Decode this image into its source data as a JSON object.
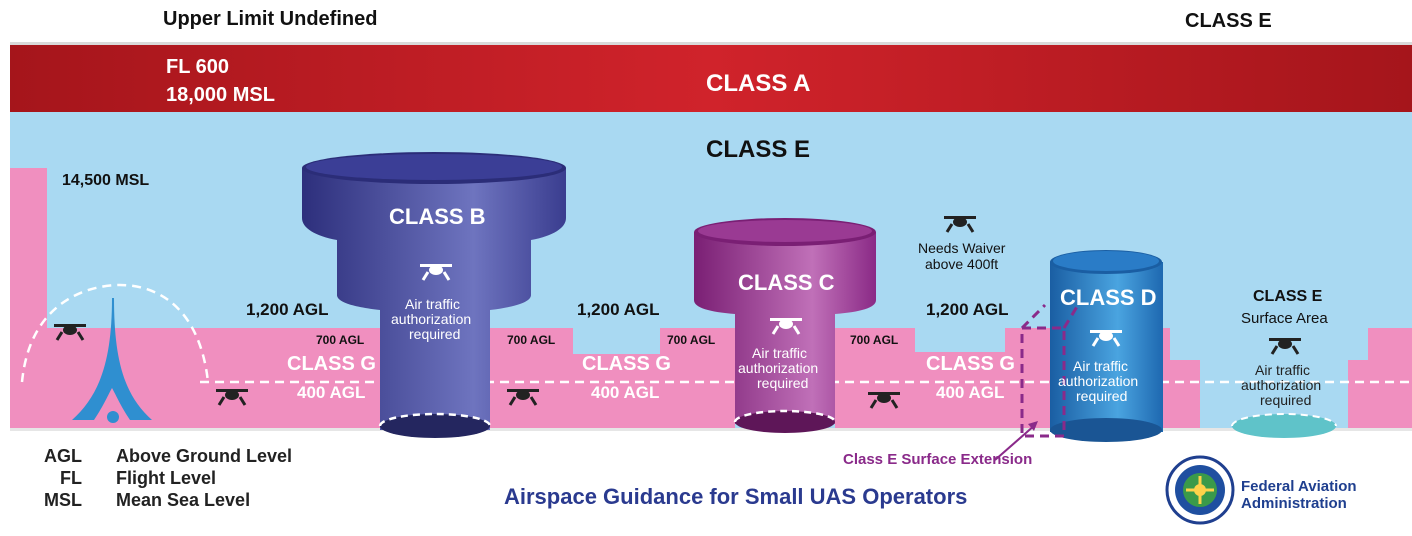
{
  "top": {
    "upper_limit": "Upper Limit Undefined",
    "class_e_top": "CLASS E"
  },
  "class_a": {
    "fl600": "FL 600",
    "msl18000": "18,000 MSL",
    "label": "CLASS A"
  },
  "class_e": {
    "label": "CLASS E",
    "msl14500": "14,500 MSL"
  },
  "class_b": {
    "label": "CLASS B",
    "note_line1": "Air traffic",
    "note_line2": "authorization",
    "note_line3": "required"
  },
  "class_c": {
    "label": "CLASS C",
    "note_line1": "Air traffic",
    "note_line2": "authorization",
    "note_line3": "required"
  },
  "class_d": {
    "label": "CLASS D",
    "note_line1": "Air traffic",
    "note_line2": "authorization",
    "note_line3": "required"
  },
  "class_e_surface": {
    "label": "CLASS E",
    "sub": "Surface Area",
    "note_line1": "Air traffic",
    "note_line2": "authorization",
    "note_line3": "required"
  },
  "waiver": {
    "line1": "Needs Waiver",
    "line2": "above 400ft"
  },
  "class_g": {
    "label": "CLASS G",
    "agl400": "400 AGL",
    "agl700": "700 AGL",
    "agl1200": "1,200 AGL"
  },
  "extension": {
    "label": "Class E Surface Extension"
  },
  "legend": [
    {
      "abbr": "AGL",
      "def": "Above Ground Level"
    },
    {
      "abbr": "FL",
      "def": "Flight Level"
    },
    {
      "abbr": "MSL",
      "def": "Mean Sea Level"
    }
  ],
  "footer": {
    "title": "Airspace Guidance for Small UAS Operators",
    "faa_line1": "Federal Aviation",
    "faa_line2": "Administration",
    "seal_text_top": "FEDERAL AVIATION",
    "seal_text_bottom": "ADMINISTRATION"
  },
  "icons": {
    "drone": "drone-icon",
    "tower": "airport-tower-icon",
    "seal": "faa-seal-icon"
  },
  "colors": {
    "class_a": "#c41e26",
    "class_e_sky": "#a9d9f2",
    "class_g": "#f08fbf",
    "class_b": "#3c3f94",
    "class_c": "#96308c",
    "class_d": "#1f6fb8",
    "class_e_surface": "#5fc3c9",
    "extension": "#8a2a8a",
    "title_blue": "#2a3a8f",
    "tower": "#2f8fd0"
  }
}
